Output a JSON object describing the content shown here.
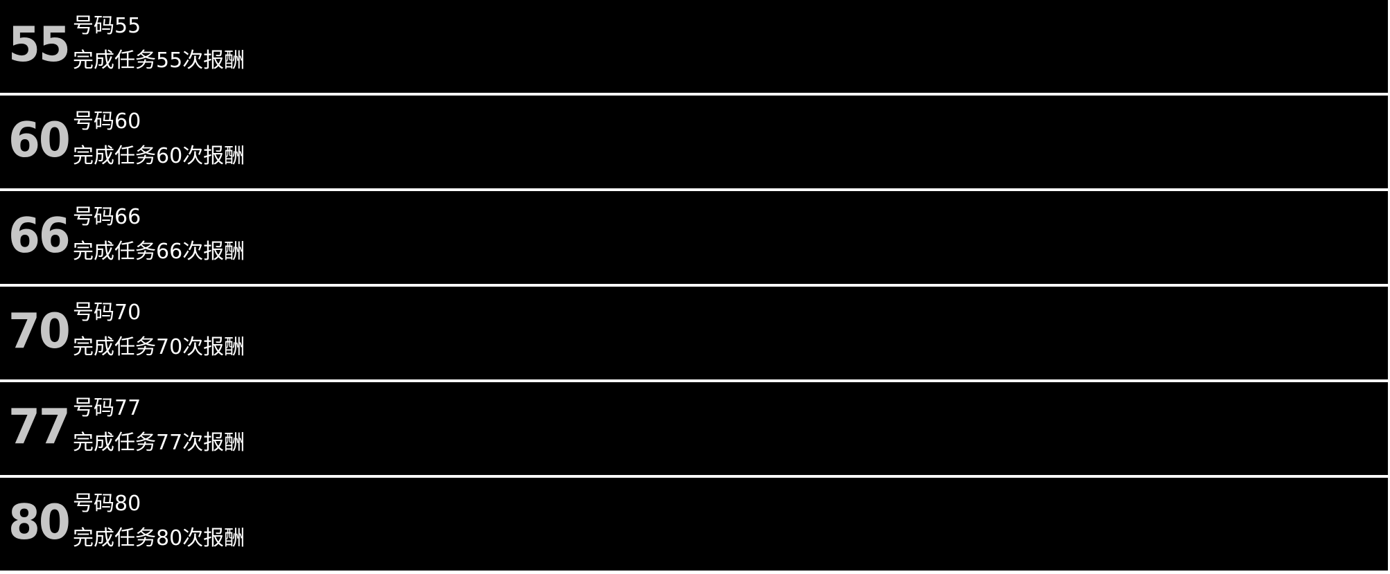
{
  "items": [
    {
      "badge": "55",
      "title": "号码55",
      "desc": "完成任务55次报酬"
    },
    {
      "badge": "60",
      "title": "号码60",
      "desc": "完成任务60次报酬"
    },
    {
      "badge": "66",
      "title": "号码66",
      "desc": "完成任务66次报酬"
    },
    {
      "badge": "70",
      "title": "号码70",
      "desc": "完成任务70次报酬"
    },
    {
      "badge": "77",
      "title": "号码77",
      "desc": "完成任务77次报酬"
    },
    {
      "badge": "80",
      "title": "号码80",
      "desc": "完成任务80次报酬"
    }
  ]
}
